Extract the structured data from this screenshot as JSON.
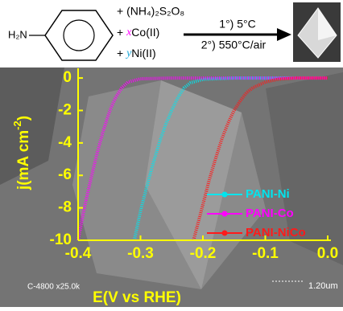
{
  "scheme": {
    "amine": "H₂N",
    "reagent1": "+ (NH₄)₂S₂O₈",
    "reagent2": {
      "plus": "+",
      "var": "x",
      "text": "Co(II)"
    },
    "reagent3": {
      "plus": "+",
      "var": "y",
      "text": "Ni(II)"
    },
    "step1": "1°) 5°C",
    "step2": "2°) 550°C/air"
  },
  "image_labels": {
    "instrument": "C-4800 x25.0k",
    "scale": "1.20um"
  },
  "chart_data": {
    "type": "line",
    "xlabel": "E(V vs RHE)",
    "ylabel": {
      "main": "j(mA cm",
      "sup": "-2",
      "end": ")"
    },
    "xlim": [
      -0.4,
      0.0
    ],
    "ylim": [
      -10,
      0.4
    ],
    "xticks": [
      -0.4,
      -0.3,
      -0.2,
      -0.1,
      {
        "value": 0,
        "label": "0.0"
      }
    ],
    "yticks": [
      0,
      -2,
      -4,
      -6,
      -8,
      -10
    ],
    "axis_color": "#ffff00",
    "legend": "lower right",
    "series": [
      {
        "name": "PANI-Ni",
        "color": "#00e5ee",
        "x": [
          -0.31,
          -0.3,
          -0.29,
          -0.28,
          -0.27,
          -0.26,
          -0.25,
          -0.24,
          -0.23,
          -0.22,
          -0.2,
          -0.15,
          -0.1,
          0
        ],
        "values": [
          -10,
          -8.2,
          -6.7,
          -5.3,
          -4.0,
          -2.9,
          -2.0,
          -1.2,
          -0.6,
          -0.3,
          -0.08,
          0,
          0,
          0
        ]
      },
      {
        "name": "PANI-Co",
        "color": "#ff00ff",
        "x": [
          -0.4,
          -0.39,
          -0.38,
          -0.37,
          -0.36,
          -0.35,
          -0.34,
          -0.33,
          -0.32,
          -0.3,
          -0.25,
          -0.2,
          -0.1,
          0
        ],
        "values": [
          -10,
          -8,
          -6.3,
          -4.7,
          -3.3,
          -2.1,
          -1.2,
          -0.6,
          -0.25,
          -0.05,
          0,
          0,
          0,
          0
        ]
      },
      {
        "name": "PANI-NiCo",
        "color": "#ff1a1a",
        "x": [
          -0.215,
          -0.2,
          -0.19,
          -0.18,
          -0.17,
          -0.16,
          -0.15,
          -0.14,
          -0.13,
          -0.12,
          -0.1,
          -0.08,
          -0.05,
          0
        ],
        "values": [
          -10,
          -7.8,
          -6.3,
          -5.0,
          -3.8,
          -2.8,
          -2.0,
          -1.4,
          -0.9,
          -0.6,
          -0.25,
          -0.08,
          0,
          0
        ]
      }
    ]
  }
}
